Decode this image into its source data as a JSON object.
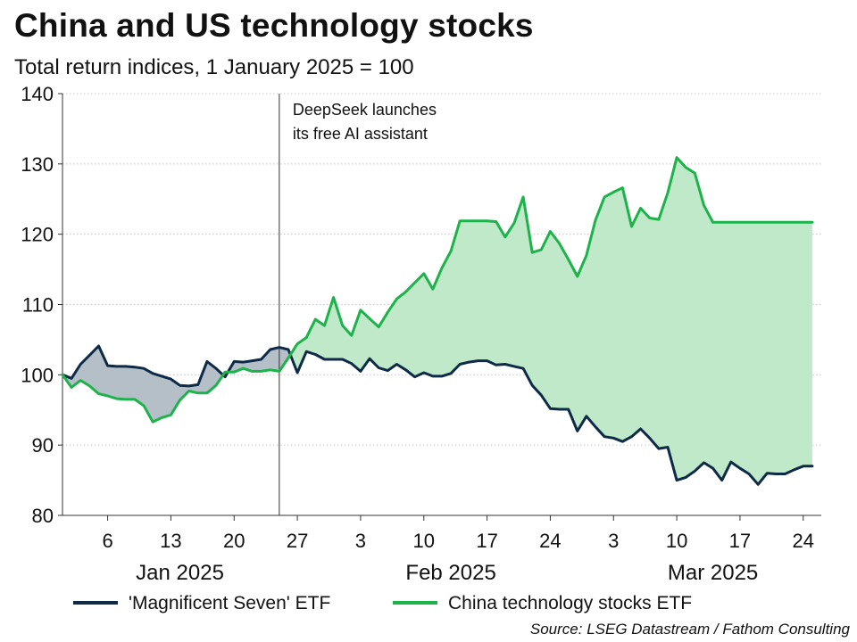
{
  "chart_data": {
    "type": "line",
    "title": "China and US technology stocks",
    "subtitle": "Total return indices, 1 January 2025 = 100",
    "ylim": [
      80,
      140
    ],
    "yticks": [
      80,
      90,
      100,
      110,
      120,
      130,
      140
    ],
    "x_tick_labels": [
      {
        "x": "2025-01-06",
        "label": "6"
      },
      {
        "x": "2025-01-13",
        "label": "13"
      },
      {
        "x": "2025-01-20",
        "label": "20"
      },
      {
        "x": "2025-01-27",
        "label": "27"
      },
      {
        "x": "2025-02-03",
        "label": "3"
      },
      {
        "x": "2025-02-10",
        "label": "10"
      },
      {
        "x": "2025-02-17",
        "label": "17"
      },
      {
        "x": "2025-02-24",
        "label": "24"
      },
      {
        "x": "2025-03-03",
        "label": "3"
      },
      {
        "x": "2025-03-10",
        "label": "10"
      },
      {
        "x": "2025-03-17",
        "label": "17"
      },
      {
        "x": "2025-03-24",
        "label": "24"
      }
    ],
    "month_labels": [
      {
        "x": "2025-01-14",
        "label": "Jan 2025"
      },
      {
        "x": "2025-02-13",
        "label": "Feb 2025"
      },
      {
        "x": "2025-03-14",
        "label": "Mar 2025"
      }
    ],
    "grid": true,
    "annotation": {
      "x": "2025-01-25",
      "lines": [
        "DeepSeek launches",
        "its free AI assistant"
      ]
    },
    "x": [
      "2025-01-01",
      "2025-01-02",
      "2025-01-03",
      "2025-01-04",
      "2025-01-05",
      "2025-01-06",
      "2025-01-07",
      "2025-01-08",
      "2025-01-09",
      "2025-01-10",
      "2025-01-11",
      "2025-01-12",
      "2025-01-13",
      "2025-01-14",
      "2025-01-15",
      "2025-01-16",
      "2025-01-17",
      "2025-01-18",
      "2025-01-19",
      "2025-01-20",
      "2025-01-21",
      "2025-01-22",
      "2025-01-23",
      "2025-01-24",
      "2025-01-25",
      "2025-01-26",
      "2025-01-27",
      "2025-01-28",
      "2025-01-29",
      "2025-01-30",
      "2025-01-31",
      "2025-02-01",
      "2025-02-02",
      "2025-02-03",
      "2025-02-04",
      "2025-02-05",
      "2025-02-06",
      "2025-02-07",
      "2025-02-08",
      "2025-02-09",
      "2025-02-10",
      "2025-02-11",
      "2025-02-12",
      "2025-02-13",
      "2025-02-14",
      "2025-02-15",
      "2025-02-16",
      "2025-02-17",
      "2025-02-18",
      "2025-02-19",
      "2025-02-20",
      "2025-02-21",
      "2025-02-22",
      "2025-02-23",
      "2025-02-24",
      "2025-02-25",
      "2025-02-26",
      "2025-02-27",
      "2025-02-28",
      "2025-03-01",
      "2025-03-02",
      "2025-03-03",
      "2025-03-04",
      "2025-03-05",
      "2025-03-06",
      "2025-03-07",
      "2025-03-08",
      "2025-03-09",
      "2025-03-10",
      "2025-03-11",
      "2025-03-12",
      "2025-03-13",
      "2025-03-14",
      "2025-03-15",
      "2025-03-16",
      "2025-03-17",
      "2025-03-18",
      "2025-03-19",
      "2025-03-20",
      "2025-03-21",
      "2025-03-22",
      "2025-03-23",
      "2025-03-24",
      "2025-03-25"
    ],
    "series": [
      {
        "name": "'Magnificent Seven' ETF",
        "color": "#0d2a47",
        "values": [
          100,
          99.5,
          101.5,
          102.8,
          104.1,
          101.3,
          101.2,
          101.2,
          101.1,
          100.9,
          100.2,
          99.8,
          99.4,
          98.5,
          98.4,
          98.6,
          101.9,
          100.9,
          99.7,
          101.9,
          101.8,
          102,
          102.2,
          103.6,
          103.9,
          103.6,
          100.3,
          103.3,
          102.9,
          102.2,
          102.2,
          102.2,
          101.6,
          100.5,
          102.3,
          101,
          100.6,
          101.5,
          100.7,
          99.7,
          100.3,
          99.8,
          99.8,
          100.2,
          101.5,
          101.8,
          102,
          102,
          101.4,
          101.5,
          101.2,
          100.9,
          98.5,
          97.1,
          95.2,
          95.1,
          95.1,
          92,
          94.1,
          92.6,
          91.2,
          91,
          90.5,
          91.2,
          92.3,
          91,
          89.5,
          89.7,
          85,
          85.4,
          86.3,
          87.5,
          86.7,
          85,
          87.6,
          86.7,
          85.9,
          84.4,
          86,
          85.9,
          85.9,
          86.5,
          87,
          87
        ]
      },
      {
        "name": "China technology stocks ETF",
        "color": "#1db34a",
        "values": [
          100,
          98.2,
          99.2,
          98.4,
          97.3,
          97,
          96.6,
          96.5,
          96.5,
          95.6,
          93.3,
          93.9,
          94.3,
          96.4,
          97.7,
          97.4,
          97.4,
          98.5,
          100.4,
          100.4,
          100.9,
          100.5,
          100.5,
          100.7,
          100.5,
          102.4,
          104.4,
          105.3,
          107.9,
          107,
          111,
          107,
          105.6,
          109.2,
          108,
          106.8,
          108.9,
          110.8,
          111.8,
          113.1,
          114.4,
          112.2,
          115.2,
          117.6,
          121.9,
          121.9,
          121.9,
          121.9,
          121.8,
          119.6,
          121.6,
          125.3,
          117.4,
          117.8,
          120.4,
          118.7,
          116.4,
          114,
          117,
          122,
          125.3,
          126,
          126.6,
          121.1,
          123.7,
          122.3,
          122.1,
          125.9,
          130.9,
          129.5,
          128.7,
          124.1,
          121.7,
          121.7,
          121.7,
          121.7,
          121.7,
          121.7,
          121.7,
          121.7,
          121.7,
          121.7,
          121.7,
          121.7
        ]
      }
    ],
    "source": "Source: LSEG Datastream / Fathom Consulting"
  }
}
